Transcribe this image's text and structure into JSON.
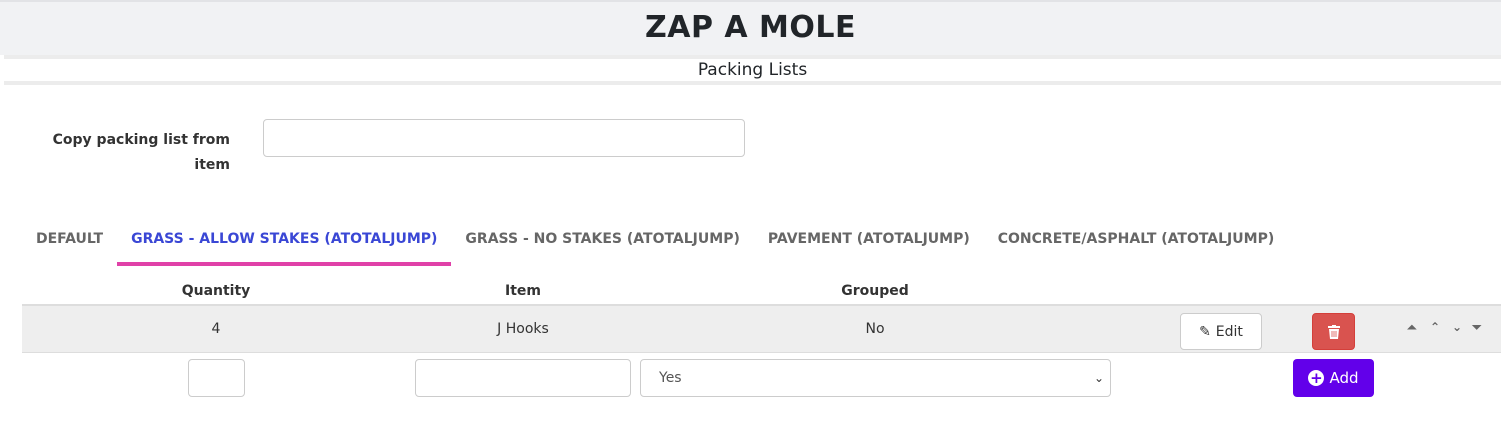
{
  "header": {
    "title": "ZAP A MOLE",
    "subtitle": "Packing Lists"
  },
  "copy": {
    "label": "Copy packing list from item",
    "value": ""
  },
  "tabs": [
    {
      "label": "DEFAULT",
      "active": false
    },
    {
      "label": "GRASS - ALLOW STAKES (ATOTALJUMP)",
      "active": true
    },
    {
      "label": "GRASS - NO STAKES (ATOTALJUMP)",
      "active": false
    },
    {
      "label": "PAVEMENT (ATOTALJUMP)",
      "active": false
    },
    {
      "label": "CONCRETE/ASPHALT (ATOTALJUMP)",
      "active": false
    }
  ],
  "table": {
    "headers": [
      "Quantity",
      "Item",
      "Grouped"
    ],
    "rows": [
      {
        "quantity": "4",
        "item": "J Hooks",
        "grouped": "No",
        "edit_label": "Edit"
      }
    ]
  },
  "new_row": {
    "quantity": "",
    "item": "",
    "grouped": "Yes",
    "add_label": "Add"
  },
  "colors": {
    "accent": "#6200ea",
    "delete": "#d9534f",
    "active_tab": "#3a47d5",
    "tab_underline": "#e041a8"
  }
}
